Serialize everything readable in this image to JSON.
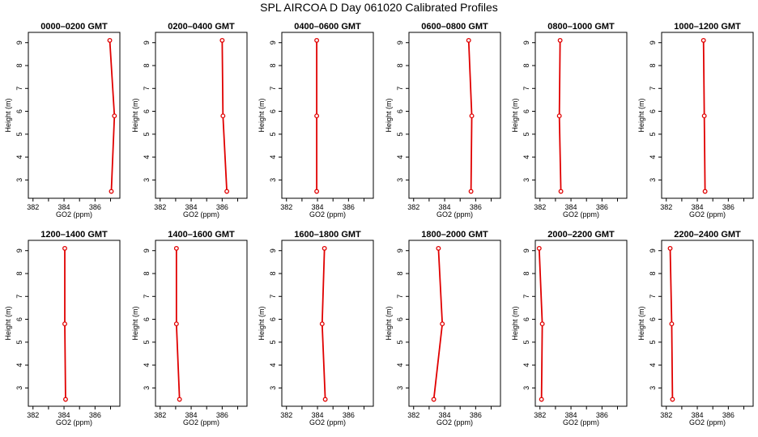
{
  "figure": {
    "title": "SPL AIRCOA D  Day 061020  Calibrated Profiles"
  },
  "chart_data": [
    {
      "type": "line",
      "title": "0000–0200 GMT",
      "xlabel": "GO2 (ppm)",
      "ylabel": "Height (m)",
      "xlim": [
        381.7,
        387.6
      ],
      "ylim": [
        2.2,
        9.45
      ],
      "xticks": [
        382,
        384,
        386
      ],
      "yticks": [
        3,
        4,
        5,
        6,
        7,
        8,
        9
      ],
      "grid": false,
      "series": [
        {
          "x": [
            387.05,
            387.25,
            386.95
          ],
          "y": [
            2.5,
            5.8,
            9.1
          ]
        }
      ]
    },
    {
      "type": "line",
      "title": "0200–0400 GMT",
      "xlabel": "GO2 (ppm)",
      "ylabel": "Height (m)",
      "xlim": [
        381.7,
        387.6
      ],
      "ylim": [
        2.2,
        9.45
      ],
      "xticks": [
        382,
        384,
        386
      ],
      "yticks": [
        3,
        4,
        5,
        6,
        7,
        8,
        9
      ],
      "grid": false,
      "series": [
        {
          "x": [
            386.3,
            386.05,
            386.0
          ],
          "y": [
            2.5,
            5.8,
            9.1
          ]
        }
      ]
    },
    {
      "type": "line",
      "title": "0400–0600 GMT",
      "xlabel": "GO2 (ppm)",
      "ylabel": "Height (m)",
      "xlim": [
        381.7,
        387.6
      ],
      "ylim": [
        2.2,
        9.45
      ],
      "xticks": [
        382,
        384,
        386
      ],
      "yticks": [
        3,
        4,
        5,
        6,
        7,
        8,
        9
      ],
      "grid": false,
      "series": [
        {
          "x": [
            383.95,
            383.95,
            383.95
          ],
          "y": [
            2.5,
            5.8,
            9.1
          ]
        }
      ]
    },
    {
      "type": "line",
      "title": "0600–0800 GMT",
      "xlabel": "GO2 (ppm)",
      "ylabel": "Height (m)",
      "xlim": [
        381.7,
        387.6
      ],
      "ylim": [
        2.2,
        9.45
      ],
      "xticks": [
        382,
        384,
        386
      ],
      "yticks": [
        3,
        4,
        5,
        6,
        7,
        8,
        9
      ],
      "grid": false,
      "series": [
        {
          "x": [
            385.7,
            385.75,
            385.55
          ],
          "y": [
            2.5,
            5.8,
            9.1
          ]
        }
      ]
    },
    {
      "type": "line",
      "title": "0800–1000 GMT",
      "xlabel": "GO2 (ppm)",
      "ylabel": "Height (m)",
      "xlim": [
        381.7,
        387.6
      ],
      "ylim": [
        2.2,
        9.45
      ],
      "xticks": [
        382,
        384,
        386
      ],
      "yticks": [
        3,
        4,
        5,
        6,
        7,
        8,
        9
      ],
      "grid": false,
      "series": [
        {
          "x": [
            383.35,
            383.25,
            383.3
          ],
          "y": [
            2.5,
            5.8,
            9.1
          ]
        }
      ]
    },
    {
      "type": "line",
      "title": "1000–1200 GMT",
      "xlabel": "GO2 (ppm)",
      "ylabel": "Height (m)",
      "xlim": [
        381.7,
        387.6
      ],
      "ylim": [
        2.2,
        9.45
      ],
      "xticks": [
        382,
        384,
        386
      ],
      "yticks": [
        3,
        4,
        5,
        6,
        7,
        8,
        9
      ],
      "grid": false,
      "series": [
        {
          "x": [
            384.5,
            384.45,
            384.4
          ],
          "y": [
            2.5,
            5.8,
            9.1
          ]
        }
      ]
    },
    {
      "type": "line",
      "title": "1200–1400 GMT",
      "xlabel": "GO2 (ppm)",
      "ylabel": "Height (m)",
      "xlim": [
        381.7,
        387.6
      ],
      "ylim": [
        2.2,
        9.45
      ],
      "xticks": [
        382,
        384,
        386
      ],
      "yticks": [
        3,
        4,
        5,
        6,
        7,
        8,
        9
      ],
      "grid": false,
      "series": [
        {
          "x": [
            384.1,
            384.05,
            384.05
          ],
          "y": [
            2.5,
            5.8,
            9.1
          ]
        }
      ]
    },
    {
      "type": "line",
      "title": "1400–1600 GMT",
      "xlabel": "GO2 (ppm)",
      "ylabel": "Height (m)",
      "xlim": [
        381.7,
        387.6
      ],
      "ylim": [
        2.2,
        9.45
      ],
      "xticks": [
        382,
        384,
        386
      ],
      "yticks": [
        3,
        4,
        5,
        6,
        7,
        8,
        9
      ],
      "grid": false,
      "series": [
        {
          "x": [
            383.25,
            383.05,
            383.05
          ],
          "y": [
            2.5,
            5.8,
            9.1
          ]
        }
      ]
    },
    {
      "type": "line",
      "title": "1600–1800 GMT",
      "xlabel": "GO2 (ppm)",
      "ylabel": "Height (m)",
      "xlim": [
        381.7,
        387.6
      ],
      "ylim": [
        2.2,
        9.45
      ],
      "xticks": [
        382,
        384,
        386
      ],
      "yticks": [
        3,
        4,
        5,
        6,
        7,
        8,
        9
      ],
      "grid": false,
      "series": [
        {
          "x": [
            384.5,
            384.3,
            384.45
          ],
          "y": [
            2.5,
            5.8,
            9.1
          ]
        }
      ]
    },
    {
      "type": "line",
      "title": "1800–2000 GMT",
      "xlabel": "GO2 (ppm)",
      "ylabel": "Height (m)",
      "xlim": [
        381.7,
        387.6
      ],
      "ylim": [
        2.2,
        9.45
      ],
      "xticks": [
        382,
        384,
        386
      ],
      "yticks": [
        3,
        4,
        5,
        6,
        7,
        8,
        9
      ],
      "grid": false,
      "series": [
        {
          "x": [
            383.3,
            383.85,
            383.6
          ],
          "y": [
            2.5,
            5.8,
            9.1
          ]
        }
      ]
    },
    {
      "type": "line",
      "title": "2000–2200 GMT",
      "xlabel": "GO2 (ppm)",
      "ylabel": "Height (m)",
      "xlim": [
        381.7,
        387.6
      ],
      "ylim": [
        2.2,
        9.45
      ],
      "xticks": [
        382,
        384,
        386
      ],
      "yticks": [
        3,
        4,
        5,
        6,
        7,
        8,
        9
      ],
      "grid": false,
      "series": [
        {
          "x": [
            382.1,
            382.15,
            381.95
          ],
          "y": [
            2.5,
            5.8,
            9.1
          ]
        }
      ]
    },
    {
      "type": "line",
      "title": "2200–2400 GMT",
      "xlabel": "GO2 (ppm)",
      "ylabel": "Height (m)",
      "xlim": [
        381.7,
        387.6
      ],
      "ylim": [
        2.2,
        9.45
      ],
      "xticks": [
        382,
        384,
        386
      ],
      "yticks": [
        3,
        4,
        5,
        6,
        7,
        8,
        9
      ],
      "grid": false,
      "series": [
        {
          "x": [
            382.4,
            382.35,
            382.25
          ],
          "y": [
            2.5,
            5.8,
            9.1
          ]
        }
      ]
    }
  ]
}
